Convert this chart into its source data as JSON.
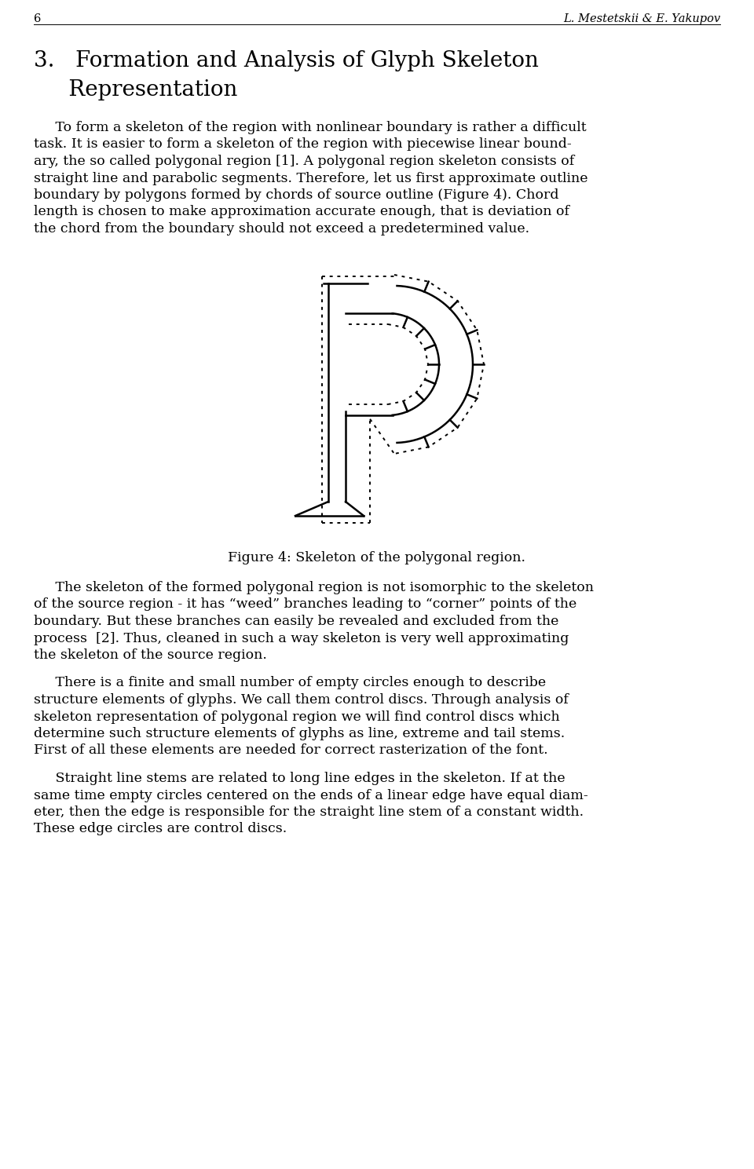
{
  "page_num": "6",
  "header_right": "L. Mestetskii & E. Yakupov",
  "section_line1": "3.   Formation and Analysis of Glyph Skeleton",
  "section_line2": "     Representation",
  "para1_lines": [
    "     To form a skeleton of the region with nonlinear boundary is rather a difficult",
    "task. It is easier to form a skeleton of the region with piecewise linear bound-",
    "ary, the so called polygonal region [1]. A polygonal region skeleton consists of",
    "straight line and parabolic segments. Therefore, let us first approximate outline",
    "boundary by polygons formed by chords of source outline (Figure 4). Chord",
    "length is chosen to make approximation accurate enough, that is deviation of",
    "the chord from the boundary should not exceed a predetermined value."
  ],
  "figure_caption": "Figure 4: Skeleton of the polygonal region.",
  "para2_lines": [
    "     The skeleton of the formed polygonal region is not isomorphic to the skeleton",
    "of the source region - it has “weed” branches leading to “corner” points of the",
    "boundary. But these branches can easily be revealed and excluded from the",
    "process  [2]. Thus, cleaned in such a way skeleton is very well approximating",
    "the skeleton of the source region."
  ],
  "para3_lines": [
    "     There is a finite and small number of empty circles enough to describe",
    "structure elements of glyphs. We call them control discs. Through analysis of",
    "skeleton representation of polygonal region we will find control discs which",
    "determine such structure elements of glyphs as line, extreme and tail stems.",
    "First of all these elements are needed for correct rasterization of the font."
  ],
  "para4_lines": [
    "     Straight line stems are related to long line edges in the skeleton. If at the",
    "same time empty circles centered on the ends of a linear edge have equal diam-",
    "eter, then the edge is responsible for the straight line stem of a constant width.",
    "These edge circles are control discs."
  ],
  "bg_color": "#ffffff",
  "text_color": "#000000"
}
